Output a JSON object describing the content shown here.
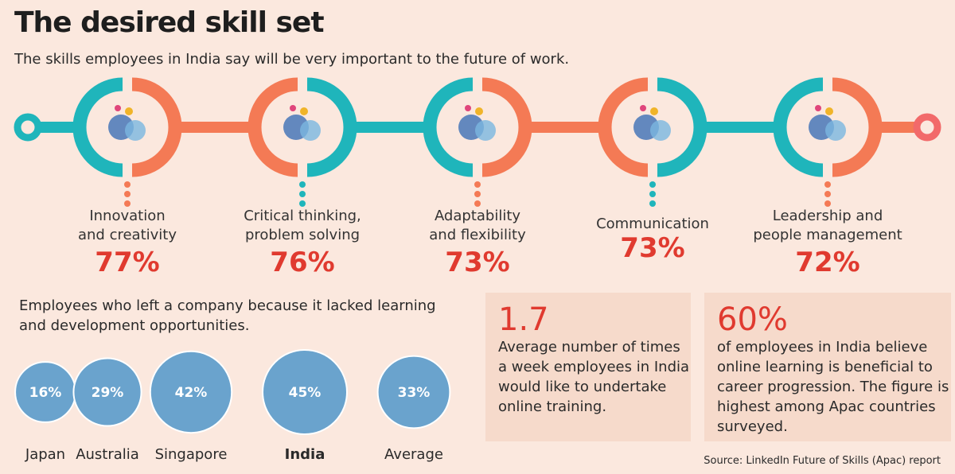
{
  "title": "The desired skill set",
  "subtitle": "The skills employees in India say will be very important to the future of work.",
  "colors": {
    "teal": "#1fb5bb",
    "orange": "#f47a55",
    "red": "#e03a2f",
    "bubble": "#6aa3cd",
    "background": "#fbe8de"
  },
  "skills": [
    {
      "label_line1": "Innovation",
      "label_line2": "and creativity",
      "pct": "77%",
      "icon": "lightbulb-head-icon"
    },
    {
      "label_line1": "Critical thinking,",
      "label_line2": "problem solving",
      "pct": "76%",
      "icon": "maze-question-icon"
    },
    {
      "label_line1": "Adaptability",
      "label_line2": "and flexibility",
      "pct": "73%",
      "icon": "stretching-person-icon"
    },
    {
      "label_line1": "",
      "label_line2": "Communication",
      "pct": "73%",
      "icon": "talking-heads-icon"
    },
    {
      "label_line1": "Leadership and",
      "label_line2": "people management",
      "pct": "72%",
      "icon": "team-presentation-icon"
    }
  ],
  "bubbles_title": "Employees who left a company because it lacked learning and development opportunities.",
  "chart_data": {
    "type": "bubble",
    "title": "Employees who left a company because it lacked learning and development opportunities.",
    "categories": [
      "Japan",
      "Australia",
      "Singapore",
      "India",
      "Average"
    ],
    "values": [
      16,
      29,
      42,
      45,
      33
    ],
    "labels": [
      "16%",
      "29%",
      "42%",
      "45%",
      "33%"
    ],
    "highlight": "India"
  },
  "stat1": {
    "value": "1.7",
    "text": "Average number of times a week employees in India would like to undertake online training."
  },
  "stat2": {
    "value": "60%",
    "text": "of employees in India believe online learning is beneficial to career progression. The figure is highest among Apac countries surveyed."
  },
  "source": "Source: LinkedIn Future of Skills (Apac) report"
}
